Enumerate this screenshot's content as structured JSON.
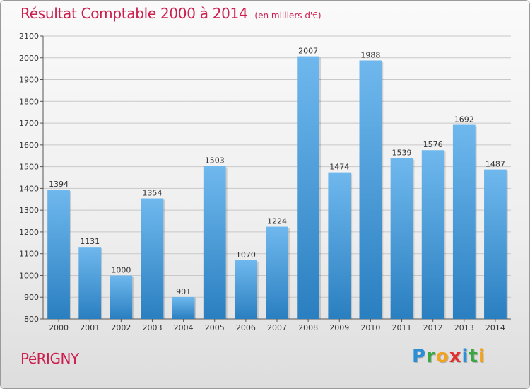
{
  "header": {
    "title": "Résultat Comptable 2000 à 2014",
    "unit": "(en milliers d'€)"
  },
  "footer": {
    "place": "PéRIGNY",
    "logo": [
      {
        "ch": "P",
        "color": "#2b8fd6"
      },
      {
        "ch": "r",
        "color": "#3aa840"
      },
      {
        "ch": "o",
        "color": "#f5a21b"
      },
      {
        "ch": "x",
        "color": "#e03030"
      },
      {
        "ch": "i",
        "color": "#2b8fd6"
      },
      {
        "ch": "t",
        "color": "#3aa840"
      },
      {
        "ch": "i",
        "color": "#f5a21b"
      }
    ]
  },
  "colors": {
    "title": "#cc1f4e",
    "bar_light": "#6fb8ee",
    "bar_dark": "#2a7fc0",
    "grid": "#c8c8c8"
  },
  "chart_data": {
    "type": "bar",
    "title": "Résultat Comptable 2000 à 2014",
    "categories": [
      "2000",
      "2001",
      "2002",
      "2003",
      "2004",
      "2005",
      "2006",
      "2007",
      "2008",
      "2009",
      "2010",
      "2011",
      "2012",
      "2013",
      "2014"
    ],
    "values": [
      1394,
      1131,
      1000,
      1354,
      901,
      1503,
      1070,
      1224,
      2007,
      1474,
      1988,
      1539,
      1576,
      1692,
      1487
    ],
    "ylim": [
      800,
      2100
    ],
    "yticks": [
      800,
      900,
      1000,
      1100,
      1200,
      1300,
      1400,
      1500,
      1600,
      1700,
      1800,
      1900,
      2000,
      2100
    ],
    "grid": true,
    "data_labels": true
  }
}
